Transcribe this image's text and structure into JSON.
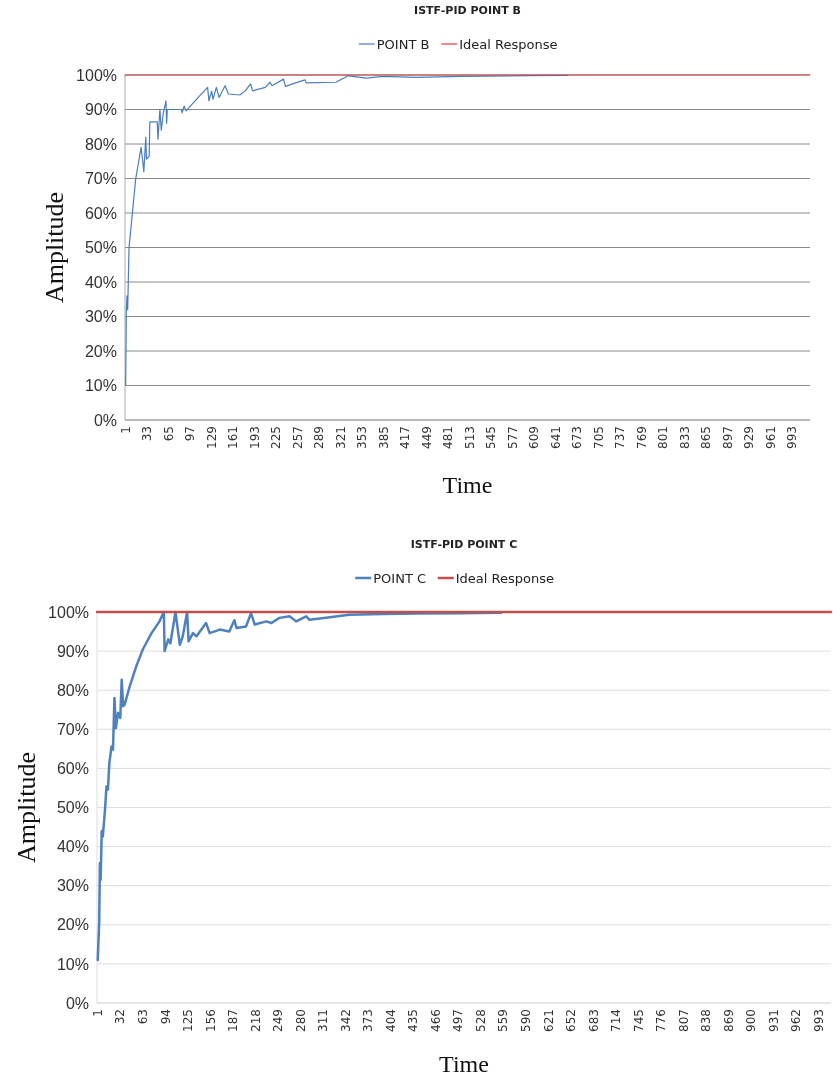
{
  "chart_data": [
    {
      "type": "line",
      "title": "ISTF-PID POINT B",
      "xlabel": "Time",
      "ylabel": "Amplitude",
      "legend": "top",
      "grid": "y",
      "xlim": [
        0,
        1020
      ],
      "xticks": [
        1,
        33,
        65,
        97,
        129,
        161,
        193,
        225,
        257,
        289,
        321,
        353,
        385,
        417,
        449,
        481,
        513,
        545,
        577,
        609,
        641,
        673,
        705,
        737,
        769,
        801,
        833,
        865,
        897,
        929,
        961,
        993
      ],
      "ylim": [
        0,
        100
      ],
      "yticks": [
        {
          "value": 0,
          "label": "0%"
        },
        {
          "value": 10,
          "label": "10%"
        },
        {
          "value": 20,
          "label": "20%"
        },
        {
          "value": 30,
          "label": "30%"
        },
        {
          "value": 40,
          "label": "40%"
        },
        {
          "value": 50,
          "label": "50%"
        },
        {
          "value": 60,
          "label": "60%"
        },
        {
          "value": 70,
          "label": "70%"
        },
        {
          "value": 80,
          "label": "80%"
        },
        {
          "value": 90,
          "label": "90%"
        },
        {
          "value": 100,
          "label": "100%"
        }
      ],
      "series": [
        {
          "name": "POINT B",
          "color": "#4a7ebb",
          "x": [
            1,
            2,
            3,
            4,
            6,
            11,
            16,
            24,
            27,
            28,
            31,
            32,
            36,
            37,
            48,
            49,
            52,
            54,
            57,
            61,
            62,
            63,
            84,
            85,
            88,
            91,
            109,
            123,
            125,
            129,
            131,
            136,
            140,
            149,
            154,
            171,
            179,
            187,
            190,
            209,
            216,
            219,
            236,
            239,
            254,
            268,
            270,
            314,
            329,
            331,
            359,
            384,
            434,
            500,
            600,
            659
          ],
          "values": [
            10,
            32,
            36,
            32,
            50,
            60,
            70,
            79,
            74,
            72,
            82,
            75.6,
            76.5,
            86.4,
            86.4,
            81.4,
            90,
            84,
            89,
            92.5,
            86,
            90,
            90,
            89,
            91,
            89.6,
            93.5,
            96.4,
            92.5,
            95.3,
            93,
            96.4,
            93.5,
            96.9,
            94.5,
            94.2,
            95.4,
            97.4,
            95.4,
            96.4,
            97.9,
            96.9,
            98.8,
            96.7,
            97.7,
            98.6,
            97.7,
            97.9,
            99.4,
            99.8,
            99.1,
            99.6,
            99.3,
            99.6,
            99.8,
            99.9
          ]
        },
        {
          "name": "Ideal Response",
          "color": "#d04040",
          "x": [
            0,
            1020
          ],
          "values": [
            100,
            100
          ]
        }
      ]
    },
    {
      "type": "line",
      "title": "ISTF-PID POINT C",
      "xlabel": "Time",
      "ylabel": "Amplitude",
      "legend": "top",
      "grid": "y",
      "xlim": [
        0,
        1010
      ],
      "xticks": [
        1,
        32,
        63,
        94,
        125,
        156,
        187,
        218,
        249,
        280,
        311,
        342,
        373,
        404,
        435,
        466,
        497,
        528,
        559,
        590,
        621,
        652,
        683,
        714,
        745,
        776,
        807,
        838,
        869,
        900,
        931,
        962,
        993
      ],
      "ylim": [
        0,
        100
      ],
      "yticks": [
        {
          "value": 0,
          "label": "0%"
        },
        {
          "value": 10,
          "label": "10%"
        },
        {
          "value": 20,
          "label": "20%"
        },
        {
          "value": 30,
          "label": "30%"
        },
        {
          "value": 40,
          "label": "40%"
        },
        {
          "value": 50,
          "label": "50%"
        },
        {
          "value": 60,
          "label": "60%"
        },
        {
          "value": 70,
          "label": "70%"
        },
        {
          "value": 80,
          "label": "80%"
        },
        {
          "value": 90,
          "label": "90%"
        },
        {
          "value": 100,
          "label": "100%"
        }
      ],
      "series": [
        {
          "name": "POINT C",
          "color": "#4f81bd",
          "x": [
            1,
            3,
            4,
            5,
            6.5,
            8,
            11,
            13,
            15,
            17,
            20,
            22,
            24,
            26,
            29,
            32,
            34,
            36,
            38,
            45,
            54,
            63,
            75,
            86,
            92,
            93,
            98,
            101,
            108,
            114,
            118,
            124,
            126,
            132,
            137,
            150,
            155,
            169,
            182,
            189,
            192,
            205,
            212,
            217,
            233,
            240,
            251,
            265,
            274,
            288,
            292,
            315,
            347,
            393,
            443,
            500,
            556
          ],
          "values": [
            11,
            20.5,
            35.8,
            31.5,
            44,
            42.6,
            49.4,
            55.4,
            54.6,
            61.4,
            65.6,
            64.8,
            78,
            70.3,
            74.2,
            72.9,
            82.7,
            75.9,
            76.3,
            81,
            86.1,
            90.4,
            94.6,
            97.6,
            100,
            90,
            93,
            92,
            100,
            91.6,
            93.8,
            100,
            92.5,
            94.6,
            93.8,
            97.2,
            94.6,
            95.5,
            95,
            97.9,
            95.9,
            96.3,
            99.7,
            96.8,
            97.6,
            97.2,
            98.5,
            98.9,
            97.6,
            98.9,
            98,
            98.5,
            99.3,
            99.5,
            99.6,
            99.7,
            99.8
          ]
        },
        {
          "name": "Ideal Response",
          "color": "#c0504d",
          "x": [
            0,
            1010
          ],
          "values": [
            100,
            100
          ]
        }
      ]
    }
  ]
}
